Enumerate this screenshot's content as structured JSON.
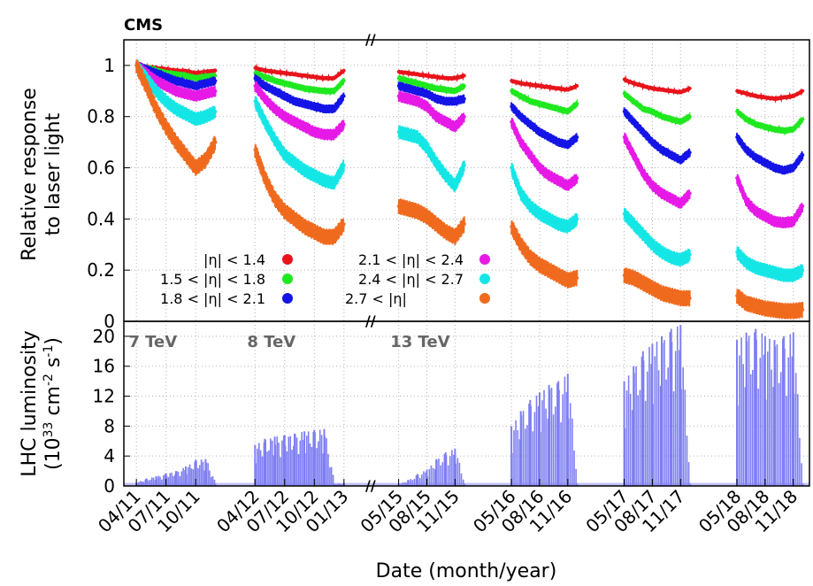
{
  "experiment_label": "CMS",
  "x_axis_title": "Date (month/year)",
  "break_marker": "//",
  "colors": {
    "red": "#e8141b",
    "green": "#1fe81f",
    "blue": "#1414e6",
    "magenta": "#e619e6",
    "cyan": "#14e6e6",
    "orange": "#f06a1e",
    "lumi": "#7f7ff2",
    "grid": "#b3b3b3"
  },
  "chart_data": [
    {
      "type": "scatter",
      "ylabel_line1": "Relative response",
      "ylabel_line2": "to laser light",
      "ylim": [
        0,
        1.1
      ],
      "y_ticks": [
        {
          "value": 0,
          "label": "0"
        },
        {
          "value": 0.2,
          "label": "0.2"
        },
        {
          "value": 0.4,
          "label": "0.4"
        },
        {
          "value": 0.6,
          "label": "0.6"
        },
        {
          "value": 0.8,
          "label": "0.8"
        },
        {
          "value": 1.0,
          "label": "1"
        }
      ],
      "grid": true,
      "legend_placement": "lower-left",
      "series": [
        {
          "name": "|η| < 1.4",
          "color": "red",
          "x": [
            "04/11",
            "05/11",
            "06/11",
            "07/11",
            "08/11",
            "09/11",
            "10/11",
            "11/11",
            "12/11",
            "04/12",
            "05/12",
            "06/12",
            "07/12",
            "08/12",
            "09/12",
            "10/12",
            "11/12",
            "12/12",
            "01/13",
            "05/15",
            "06/15",
            "07/15",
            "08/15",
            "09/15",
            "10/15",
            "11/15",
            "12/15",
            "05/16",
            "06/16",
            "07/16",
            "08/16",
            "09/16",
            "10/16",
            "11/16",
            "12/16",
            "05/17",
            "06/17",
            "07/17",
            "08/17",
            "09/17",
            "10/17",
            "11/17",
            "12/17",
            "05/18",
            "06/18",
            "07/18",
            "08/18",
            "09/18",
            "10/18",
            "11/18",
            "12/18"
          ],
          "y": [
            1.0,
            0.995,
            0.99,
            0.985,
            0.98,
            0.978,
            0.97,
            0.975,
            0.98,
            0.99,
            0.98,
            0.975,
            0.97,
            0.965,
            0.96,
            0.955,
            0.95,
            0.95,
            0.98,
            0.975,
            0.97,
            0.965,
            0.96,
            0.955,
            0.95,
            0.95,
            0.96,
            0.94,
            0.93,
            0.925,
            0.92,
            0.915,
            0.91,
            0.905,
            0.92,
            0.945,
            0.93,
            0.92,
            0.91,
            0.905,
            0.9,
            0.895,
            0.91,
            0.9,
            0.89,
            0.88,
            0.875,
            0.87,
            0.875,
            0.88,
            0.9
          ]
        },
        {
          "name": "1.5 < |η| < 1.8",
          "color": "green",
          "x": [
            "04/11",
            "05/11",
            "06/11",
            "07/11",
            "08/11",
            "09/11",
            "10/11",
            "11/11",
            "12/11",
            "04/12",
            "05/12",
            "06/12",
            "07/12",
            "08/12",
            "09/12",
            "10/12",
            "11/12",
            "12/12",
            "01/13",
            "05/15",
            "06/15",
            "07/15",
            "08/15",
            "09/15",
            "10/15",
            "11/15",
            "12/15",
            "05/16",
            "06/16",
            "07/16",
            "08/16",
            "09/16",
            "10/16",
            "11/16",
            "12/16",
            "05/17",
            "06/17",
            "07/17",
            "08/17",
            "09/17",
            "10/17",
            "11/17",
            "12/17",
            "05/18",
            "06/18",
            "07/18",
            "08/18",
            "09/18",
            "10/18",
            "11/18",
            "12/18"
          ],
          "y": [
            1.0,
            0.99,
            0.98,
            0.97,
            0.965,
            0.96,
            0.95,
            0.955,
            0.96,
            0.97,
            0.955,
            0.94,
            0.93,
            0.92,
            0.91,
            0.905,
            0.9,
            0.9,
            0.94,
            0.95,
            0.94,
            0.93,
            0.92,
            0.91,
            0.905,
            0.9,
            0.92,
            0.9,
            0.88,
            0.86,
            0.85,
            0.84,
            0.83,
            0.82,
            0.85,
            0.89,
            0.86,
            0.83,
            0.82,
            0.8,
            0.79,
            0.78,
            0.8,
            0.82,
            0.79,
            0.77,
            0.76,
            0.75,
            0.745,
            0.75,
            0.79
          ]
        },
        {
          "name": "1.8 < |η| < 2.1",
          "color": "blue",
          "x": [
            "04/11",
            "05/11",
            "06/11",
            "07/11",
            "08/11",
            "09/11",
            "10/11",
            "11/11",
            "12/11",
            "04/12",
            "05/12",
            "06/12",
            "07/12",
            "08/12",
            "09/12",
            "10/12",
            "11/12",
            "12/12",
            "01/13",
            "05/15",
            "06/15",
            "07/15",
            "08/15",
            "09/15",
            "10/15",
            "11/15",
            "12/15",
            "05/16",
            "06/16",
            "07/16",
            "08/16",
            "09/16",
            "10/16",
            "11/16",
            "12/16",
            "05/17",
            "06/17",
            "07/17",
            "08/17",
            "09/17",
            "10/17",
            "11/17",
            "12/17",
            "05/18",
            "06/18",
            "07/18",
            "08/18",
            "09/18",
            "10/18",
            "11/18",
            "12/18"
          ],
          "y": [
            1.0,
            0.985,
            0.97,
            0.955,
            0.94,
            0.93,
            0.92,
            0.93,
            0.94,
            0.95,
            0.92,
            0.9,
            0.88,
            0.86,
            0.85,
            0.84,
            0.83,
            0.83,
            0.88,
            0.92,
            0.91,
            0.9,
            0.89,
            0.87,
            0.86,
            0.86,
            0.87,
            0.84,
            0.8,
            0.77,
            0.74,
            0.72,
            0.7,
            0.69,
            0.72,
            0.82,
            0.78,
            0.74,
            0.7,
            0.67,
            0.65,
            0.63,
            0.66,
            0.72,
            0.67,
            0.64,
            0.62,
            0.6,
            0.59,
            0.6,
            0.65
          ]
        },
        {
          "name": "2.1 < |η| < 2.4",
          "color": "magenta",
          "x": [
            "04/11",
            "05/11",
            "06/11",
            "07/11",
            "08/11",
            "09/11",
            "10/11",
            "11/11",
            "12/11",
            "04/12",
            "05/12",
            "06/12",
            "07/12",
            "08/12",
            "09/12",
            "10/12",
            "11/12",
            "12/12",
            "01/13",
            "05/15",
            "06/15",
            "07/15",
            "08/15",
            "09/15",
            "10/15",
            "11/15",
            "12/15",
            "05/16",
            "06/16",
            "07/16",
            "08/16",
            "09/16",
            "10/16",
            "11/16",
            "12/16",
            "05/17",
            "06/17",
            "07/17",
            "08/17",
            "09/17",
            "10/17",
            "11/17",
            "12/17",
            "05/18",
            "06/18",
            "07/18",
            "08/18",
            "09/18",
            "10/18",
            "11/18",
            "12/18"
          ],
          "y": [
            1.0,
            0.97,
            0.94,
            0.92,
            0.9,
            0.89,
            0.88,
            0.89,
            0.9,
            0.92,
            0.87,
            0.83,
            0.8,
            0.78,
            0.76,
            0.74,
            0.73,
            0.73,
            0.77,
            0.88,
            0.87,
            0.86,
            0.84,
            0.8,
            0.78,
            0.76,
            0.8,
            0.78,
            0.7,
            0.65,
            0.6,
            0.57,
            0.55,
            0.53,
            0.56,
            0.72,
            0.65,
            0.58,
            0.53,
            0.5,
            0.48,
            0.46,
            0.5,
            0.56,
            0.47,
            0.43,
            0.41,
            0.39,
            0.385,
            0.39,
            0.45
          ]
        },
        {
          "name": "2.4 < |η| < 2.7",
          "color": "cyan",
          "x": [
            "04/11",
            "05/11",
            "06/11",
            "07/11",
            "08/11",
            "09/11",
            "10/11",
            "11/11",
            "12/11",
            "04/12",
            "05/12",
            "06/12",
            "07/12",
            "08/12",
            "09/12",
            "10/12",
            "11/12",
            "12/12",
            "01/13",
            "05/15",
            "06/15",
            "07/15",
            "08/15",
            "09/15",
            "10/15",
            "11/15",
            "12/15",
            "05/16",
            "06/16",
            "07/16",
            "08/16",
            "09/16",
            "10/16",
            "11/16",
            "12/16",
            "05/17",
            "06/17",
            "07/17",
            "08/17",
            "09/17",
            "10/17",
            "11/17",
            "12/17",
            "05/18",
            "06/18",
            "07/18",
            "08/18",
            "09/18",
            "10/18",
            "11/18",
            "12/18"
          ],
          "y": [
            1.0,
            0.95,
            0.9,
            0.86,
            0.83,
            0.81,
            0.79,
            0.8,
            0.82,
            0.86,
            0.78,
            0.71,
            0.65,
            0.62,
            0.59,
            0.57,
            0.55,
            0.54,
            0.61,
            0.74,
            0.73,
            0.72,
            0.68,
            0.62,
            0.57,
            0.53,
            0.61,
            0.6,
            0.5,
            0.45,
            0.42,
            0.4,
            0.38,
            0.37,
            0.4,
            0.42,
            0.38,
            0.34,
            0.3,
            0.27,
            0.25,
            0.24,
            0.26,
            0.27,
            0.23,
            0.21,
            0.2,
            0.19,
            0.18,
            0.18,
            0.2
          ]
        },
        {
          "name": "2.7 < |η|",
          "color": "orange",
          "x": [
            "04/11",
            "05/11",
            "06/11",
            "07/11",
            "08/11",
            "09/11",
            "10/11",
            "11/11",
            "12/11",
            "04/12",
            "05/12",
            "06/12",
            "07/12",
            "08/12",
            "09/12",
            "10/12",
            "11/12",
            "12/12",
            "01/13",
            "05/15",
            "06/15",
            "07/15",
            "08/15",
            "09/15",
            "10/15",
            "11/15",
            "12/15",
            "05/16",
            "06/16",
            "07/16",
            "08/16",
            "09/16",
            "10/16",
            "11/16",
            "12/16",
            "05/17",
            "06/17",
            "07/17",
            "08/17",
            "09/17",
            "10/17",
            "11/17",
            "12/17",
            "05/18",
            "06/18",
            "07/18",
            "08/18",
            "09/18",
            "10/18",
            "11/18",
            "12/18"
          ],
          "y": [
            1.0,
            0.92,
            0.83,
            0.76,
            0.7,
            0.65,
            0.6,
            0.63,
            0.7,
            0.67,
            0.56,
            0.48,
            0.43,
            0.4,
            0.37,
            0.35,
            0.33,
            0.33,
            0.38,
            0.45,
            0.44,
            0.43,
            0.41,
            0.38,
            0.35,
            0.33,
            0.38,
            0.37,
            0.3,
            0.25,
            0.22,
            0.2,
            0.18,
            0.16,
            0.17,
            0.18,
            0.17,
            0.15,
            0.13,
            0.11,
            0.1,
            0.09,
            0.09,
            0.1,
            0.07,
            0.06,
            0.05,
            0.045,
            0.04,
            0.04,
            0.045
          ]
        }
      ]
    },
    {
      "type": "area",
      "ylabel_line1": "LHC luminosity",
      "ylabel_line2": "(10",
      "ylabel_exp1": "33",
      "ylabel_mid": " cm",
      "ylabel_exp2": "-2",
      "ylabel_tail": " s",
      "ylabel_exp3": "-1",
      "ylabel_close": ")",
      "ylim": [
        0,
        22
      ],
      "y_ticks": [
        {
          "value": 0,
          "label": "0"
        },
        {
          "value": 4,
          "label": "4"
        },
        {
          "value": 8,
          "label": "8"
        },
        {
          "value": 12,
          "label": "12"
        },
        {
          "value": 16,
          "label": "16"
        },
        {
          "value": 20,
          "label": "20"
        }
      ],
      "grid": true,
      "annotations": [
        {
          "text": "7 TeV",
          "x": "05/11",
          "y": 19.5
        },
        {
          "text": "8 TeV",
          "x": "05/12",
          "y": 19.5
        },
        {
          "text": "13 TeV",
          "x": "06/15",
          "y": 19.5
        }
      ],
      "series": [
        {
          "name": "",
          "color": "lumi",
          "x": [
            "04/11",
            "05/11",
            "06/11",
            "07/11",
            "08/11",
            "09/11",
            "10/11",
            "11/11",
            "12/11",
            "04/12",
            "05/12",
            "06/12",
            "07/12",
            "08/12",
            "09/12",
            "10/12",
            "11/12",
            "12/12",
            "01/13",
            "05/15",
            "06/15",
            "07/15",
            "08/15",
            "09/15",
            "10/15",
            "11/15",
            "12/15",
            "05/16",
            "06/16",
            "07/16",
            "08/16",
            "09/16",
            "10/16",
            "11/16",
            "12/16",
            "05/17",
            "06/17",
            "07/17",
            "08/17",
            "09/17",
            "10/17",
            "11/17",
            "12/17",
            "05/18",
            "06/18",
            "07/18",
            "08/18",
            "09/18",
            "10/18",
            "11/18",
            "12/18"
          ],
          "y": [
            0.5,
            1.0,
            1.3,
            1.7,
            2.0,
            2.6,
            3.5,
            3.6,
            0.3,
            5.5,
            6.3,
            6.6,
            6.8,
            7.0,
            7.3,
            7.5,
            7.6,
            0.3,
            0.4,
            0.3,
            0.8,
            1.6,
            2.2,
            3.6,
            4.5,
            5.0,
            0.3,
            8.0,
            10.0,
            11.5,
            12.5,
            13.5,
            14.0,
            15.0,
            0.3,
            14.0,
            16.0,
            18.0,
            19.0,
            20.0,
            21.0,
            21.5,
            0.3,
            19.5,
            20.5,
            21.0,
            20.0,
            19.5,
            20.0,
            20.5,
            0.3
          ]
        }
      ]
    }
  ],
  "x_ticks": [
    "04/11",
    "07/11",
    "10/11",
    "04/12",
    "07/12",
    "10/12",
    "01/13",
    "05/15",
    "08/15",
    "11/15",
    "05/16",
    "08/16",
    "11/16",
    "05/17",
    "08/17",
    "11/17",
    "05/18",
    "08/18",
    "11/18"
  ],
  "legend": {
    "col1": [
      "|η| < 1.4",
      "1.5 < |η| < 1.8",
      "1.8 < |η| < 2.1"
    ],
    "col2": [
      "2.1 < |η| < 2.4",
      "2.4 < |η| < 2.7",
      "2.7 < |η|"
    ],
    "col1_colors": [
      "red",
      "green",
      "blue"
    ],
    "col2_colors": [
      "magenta",
      "cyan",
      "orange"
    ]
  }
}
